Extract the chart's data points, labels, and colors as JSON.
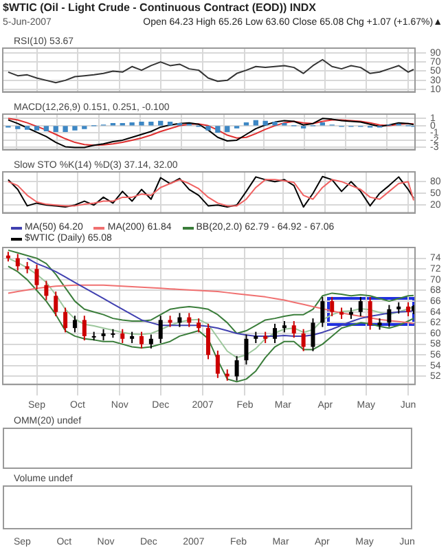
{
  "chart_data": [
    {
      "type": "other",
      "title": "$WTIC (Oil - Light Crude - Continuous Contract (EOD)) INDX",
      "subtitle": "5-Jun-2007",
      "annotations": [
        "Open 64.23  High 65.26  Low 63.60  Close 65.08  Chg +1.07 (+1.67%)▲"
      ]
    },
    {
      "type": "line",
      "title": "RSI(10) 53.67",
      "xlim": [
        "2006-08-07",
        "2007-06-06"
      ],
      "xticks": [
        {
          "value": "2006-09-01",
          "label": null
        },
        {
          "value": "2006-10-01",
          "label": null
        },
        {
          "value": "2006-11-01",
          "label": null
        },
        {
          "value": "2006-12-01",
          "label": null
        },
        {
          "value": "2007-01-01",
          "label": null
        },
        {
          "value": "2007-02-01",
          "label": null
        },
        {
          "value": "2007-03-01",
          "label": null
        },
        {
          "value": "2007-04-01",
          "label": null
        },
        {
          "value": "2007-05-01",
          "label": null
        },
        {
          "value": "2007-06-01",
          "label": null
        }
      ],
      "ylim": [
        5,
        100
      ],
      "yticks": [
        10,
        30,
        50,
        70,
        90
      ],
      "tick_labels": "y",
      "grid": true,
      "x": [
        "2006-08-11",
        "2006-08-18",
        "2006-08-25",
        "2006-09-01",
        "2006-09-08",
        "2006-09-15",
        "2006-09-22",
        "2006-09-29",
        "2006-10-06",
        "2006-10-13",
        "2006-10-20",
        "2006-10-27",
        "2006-11-03",
        "2006-11-10",
        "2006-11-17",
        "2006-11-24",
        "2006-12-01",
        "2006-12-08",
        "2006-12-15",
        "2006-12-22",
        "2006-12-29",
        "2007-01-05",
        "2007-01-12",
        "2007-01-19",
        "2007-01-26",
        "2007-02-02",
        "2007-02-09",
        "2007-02-16",
        "2007-02-23",
        "2007-03-02",
        "2007-03-09",
        "2007-03-16",
        "2007-03-23",
        "2007-03-30",
        "2007-04-06",
        "2007-04-13",
        "2007-04-20",
        "2007-04-27",
        "2007-05-04",
        "2007-05-11",
        "2007-05-18",
        "2007-05-25",
        "2007-06-01",
        "2007-06-05"
      ],
      "series": [
        {
          "color": "#333333",
          "values": [
            48,
            40,
            42,
            35,
            30,
            25,
            30,
            38,
            40,
            42,
            45,
            50,
            48,
            60,
            52,
            62,
            70,
            62,
            65,
            55,
            52,
            35,
            28,
            30,
            45,
            52,
            60,
            58,
            60,
            62,
            58,
            45,
            62,
            75,
            60,
            55,
            62,
            58,
            45,
            48,
            55,
            62,
            48,
            53.67
          ]
        }
      ]
    },
    {
      "type": "line",
      "title": "MACD(12,26,9) 0.151, 0.251, -0.100",
      "xlim": [
        "2006-08-07",
        "2007-06-06"
      ],
      "xticks": [
        {
          "value": "2006-09-01",
          "label": null
        },
        {
          "value": "2006-10-01",
          "label": null
        },
        {
          "value": "2006-11-01",
          "label": null
        },
        {
          "value": "2006-12-01",
          "label": null
        },
        {
          "value": "2007-01-01",
          "label": null
        },
        {
          "value": "2007-02-01",
          "label": null
        },
        {
          "value": "2007-03-01",
          "label": null
        },
        {
          "value": "2007-04-01",
          "label": null
        },
        {
          "value": "2007-05-01",
          "label": null
        },
        {
          "value": "2007-06-01",
          "label": null
        }
      ],
      "ylim": [
        -3.3,
        1.6
      ],
      "yticks": [
        -3,
        -2,
        -1,
        0,
        1
      ],
      "tick_labels": "y",
      "grid": true,
      "x": [
        "2006-08-11",
        "2006-08-18",
        "2006-08-25",
        "2006-09-01",
        "2006-09-08",
        "2006-09-15",
        "2006-09-22",
        "2006-09-29",
        "2006-10-06",
        "2006-10-13",
        "2006-10-20",
        "2006-10-27",
        "2006-11-03",
        "2006-11-10",
        "2006-11-17",
        "2006-11-24",
        "2006-12-01",
        "2006-12-08",
        "2006-12-15",
        "2006-12-22",
        "2006-12-29",
        "2007-01-05",
        "2007-01-12",
        "2007-01-19",
        "2007-01-26",
        "2007-02-02",
        "2007-02-09",
        "2007-02-16",
        "2007-02-23",
        "2007-03-02",
        "2007-03-09",
        "2007-03-16",
        "2007-03-23",
        "2007-03-30",
        "2007-04-06",
        "2007-04-13",
        "2007-04-20",
        "2007-04-27",
        "2007-05-04",
        "2007-05-11",
        "2007-05-18",
        "2007-05-25",
        "2007-06-01",
        "2007-06-05"
      ],
      "series": [
        {
          "type": "bar",
          "color": "#3d87c4",
          "values": [
            -0.2,
            -0.4,
            -0.5,
            -0.6,
            -0.7,
            -0.8,
            -0.8,
            -0.6,
            -0.4,
            0,
            0.1,
            0.3,
            0.3,
            0.4,
            0.5,
            0.5,
            0.6,
            0.5,
            0.3,
            0.2,
            -0.05,
            -0.6,
            -0.9,
            -0.8,
            -0.3,
            0.4,
            0.7,
            0.6,
            0.5,
            0.3,
            0,
            -0.3,
            0,
            0.4,
            0.1,
            -0.1,
            -0.1,
            -0.1,
            -0.2,
            -0.2,
            0.1,
            0.2,
            0,
            -0.1
          ]
        },
        {
          "color": "#000000",
          "values": [
            0.8,
            0.3,
            -0.3,
            -0.9,
            -1.5,
            -2.3,
            -2.9,
            -3.0,
            -3.0,
            -2.7,
            -2.5,
            -2.2,
            -2.0,
            -1.6,
            -1.2,
            -0.8,
            -0.2,
            0.1,
            0.3,
            0.4,
            0.2,
            -0.6,
            -1.6,
            -2.1,
            -2.0,
            -1.2,
            -0.4,
            0.1,
            0.5,
            0.7,
            0.6,
            0.1,
            0.3,
            1.0,
            0.9,
            0.7,
            0.6,
            0.5,
            0.2,
            -0.1,
            0.1,
            0.4,
            0.3,
            0.151
          ]
        },
        {
          "color": "#e03030",
          "values": [
            1.0,
            0.8,
            0.4,
            -0.1,
            -0.6,
            -1.2,
            -1.8,
            -2.3,
            -2.6,
            -2.7,
            -2.65,
            -2.5,
            -2.3,
            -2.0,
            -1.7,
            -1.3,
            -0.8,
            -0.4,
            0.0,
            0.2,
            0.25,
            0.0,
            -0.6,
            -1.3,
            -1.7,
            -1.6,
            -1.1,
            -0.5,
            0.0,
            0.4,
            0.6,
            0.4,
            0.3,
            0.6,
            0.8,
            0.8,
            0.7,
            0.6,
            0.4,
            0.1,
            0.0,
            0.2,
            0.3,
            0.251
          ]
        }
      ]
    },
    {
      "type": "line",
      "title": "Slow STO %K(14) %D(3) 37.14, 32.00",
      "xlim": [
        "2006-08-07",
        "2007-06-06"
      ],
      "xticks": [
        {
          "value": "2006-09-01",
          "label": null
        },
        {
          "value": "2006-10-01",
          "label": null
        },
        {
          "value": "2006-11-01",
          "label": null
        },
        {
          "value": "2006-12-01",
          "label": null
        },
        {
          "value": "2007-01-01",
          "label": null
        },
        {
          "value": "2007-02-01",
          "label": null
        },
        {
          "value": "2007-03-01",
          "label": null
        },
        {
          "value": "2007-04-01",
          "label": null
        },
        {
          "value": "2007-05-01",
          "label": null
        },
        {
          "value": "2007-06-01",
          "label": null
        }
      ],
      "ylim": [
        0,
        105
      ],
      "yticks": [
        20,
        50,
        80
      ],
      "tick_labels": "y",
      "grid": true,
      "x": [
        "2006-08-11",
        "2006-08-18",
        "2006-08-25",
        "2006-09-01",
        "2006-09-08",
        "2006-09-15",
        "2006-09-22",
        "2006-09-29",
        "2006-10-06",
        "2006-10-13",
        "2006-10-20",
        "2006-10-27",
        "2006-11-03",
        "2006-11-10",
        "2006-11-17",
        "2006-11-24",
        "2006-12-01",
        "2006-12-08",
        "2006-12-15",
        "2006-12-22",
        "2006-12-29",
        "2007-01-05",
        "2007-01-12",
        "2007-01-19",
        "2007-01-26",
        "2007-02-02",
        "2007-02-09",
        "2007-02-16",
        "2007-02-23",
        "2007-03-02",
        "2007-03-09",
        "2007-03-16",
        "2007-03-23",
        "2007-03-30",
        "2007-04-06",
        "2007-04-13",
        "2007-04-20",
        "2007-04-27",
        "2007-05-04",
        "2007-05-11",
        "2007-05-18",
        "2007-05-25",
        "2007-06-01",
        "2007-06-05"
      ],
      "series": [
        {
          "color": "#f06060",
          "values": [
            80,
            70,
            45,
            28,
            22,
            20,
            18,
            18,
            22,
            25,
            30,
            30,
            40,
            40,
            48,
            45,
            65,
            75,
            85,
            75,
            62,
            40,
            25,
            18,
            18,
            35,
            65,
            85,
            85,
            82,
            78,
            45,
            35,
            65,
            85,
            80,
            70,
            60,
            40,
            35,
            55,
            75,
            80,
            32
          ]
        },
        {
          "color": "#000000",
          "values": [
            85,
            60,
            18,
            25,
            20,
            18,
            15,
            20,
            30,
            20,
            40,
            25,
            55,
            30,
            60,
            35,
            90,
            75,
            88,
            60,
            45,
            18,
            20,
            15,
            20,
            55,
            92,
            85,
            80,
            85,
            70,
            15,
            50,
            93,
            85,
            55,
            80,
            55,
            18,
            50,
            70,
            92,
            60,
            37.14
          ]
        }
      ]
    },
    {
      "type": "candlestick",
      "xlim": [
        "2006-08-07",
        "2007-06-06"
      ],
      "xticks": [
        {
          "value": "2006-09-01",
          "label": "Sep"
        },
        {
          "value": "2006-10-01",
          "label": "Oct"
        },
        {
          "value": "2006-11-01",
          "label": "Nov"
        },
        {
          "value": "2006-12-01",
          "label": "Dec"
        },
        {
          "value": "2007-01-01",
          "label": "2007"
        },
        {
          "value": "2007-02-01",
          "label": "Feb"
        },
        {
          "value": "2007-03-01",
          "label": "Mar"
        },
        {
          "value": "2007-04-01",
          "label": "Apr"
        },
        {
          "value": "2007-05-01",
          "label": "May"
        },
        {
          "value": "2007-06-01",
          "label": "Jun"
        }
      ],
      "ylim": [
        50.5,
        76
      ],
      "yticks": [
        52,
        54,
        56,
        58,
        60,
        62,
        64,
        66,
        68,
        70,
        72,
        74
      ],
      "grid": true,
      "legend": "top left",
      "x": [
        "2006-08-11",
        "2006-08-18",
        "2006-08-25",
        "2006-09-01",
        "2006-09-08",
        "2006-09-15",
        "2006-09-22",
        "2006-09-29",
        "2006-10-06",
        "2006-10-13",
        "2006-10-20",
        "2006-10-27",
        "2006-11-03",
        "2006-11-10",
        "2006-11-17",
        "2006-11-24",
        "2006-12-01",
        "2006-12-08",
        "2006-12-15",
        "2006-12-22",
        "2006-12-29",
        "2007-01-05",
        "2007-01-12",
        "2007-01-19",
        "2007-01-26",
        "2007-02-02",
        "2007-02-09",
        "2007-02-16",
        "2007-02-23",
        "2007-03-02",
        "2007-03-09",
        "2007-03-16",
        "2007-03-23",
        "2007-03-30",
        "2007-04-06",
        "2007-04-13",
        "2007-04-20",
        "2007-04-27",
        "2007-05-04",
        "2007-05-11",
        "2007-05-18",
        "2007-05-25",
        "2007-06-01",
        "2007-06-05"
      ],
      "series": [
        {
          "type": "line",
          "name": "MA(50) 64.20",
          "color": "#4040b0",
          "values": [
            null,
            null,
            74,
            73,
            72.3,
            71.5,
            70.5,
            69.5,
            68.5,
            67.5,
            66.5,
            65.5,
            64.5,
            63.5,
            62.5,
            62,
            61.5,
            61.5,
            61.5,
            61.5,
            61.5,
            61.3,
            61,
            60.5,
            60,
            59.7,
            59.5,
            59.5,
            59.5,
            59.6,
            59.5,
            59.5,
            59.7,
            60.2,
            60.8,
            61.5,
            62.2,
            62.8,
            63.2,
            63.5,
            63.8,
            64,
            64.1,
            64.2
          ]
        },
        {
          "type": "line",
          "name": "MA(200) 61.84",
          "color": "#f07070",
          "values": [
            67.5,
            67.8,
            68.1,
            68.4,
            68.6,
            68.8,
            68.9,
            69,
            69,
            69,
            69,
            68.9,
            68.8,
            68.7,
            68.6,
            68.5,
            68.4,
            68.3,
            68.2,
            68.1,
            68,
            67.9,
            67.8,
            67.6,
            67.4,
            67.2,
            67,
            66.8,
            66.5,
            66.2,
            65.8,
            65.4,
            65,
            64.6,
            64.2,
            63.8,
            63.5,
            63.2,
            62.9,
            62.6,
            62.4,
            62.2,
            62,
            61.84
          ]
        },
        {
          "type": "line",
          "name": "BB(20,2.0) 62.79 - 64.92 - 67.06",
          "color": "#3a7d3a",
          "values": [
            75.5,
            75,
            74.5,
            74,
            73,
            71,
            68.5,
            66,
            64.5,
            64,
            63.5,
            62.8,
            62.5,
            62.3,
            62.3,
            62.5,
            63.5,
            64.5,
            64.8,
            65,
            64.8,
            64.5,
            63.5,
            62,
            60,
            60.5,
            61.5,
            62.5,
            62.8,
            63.2,
            63.5,
            63.5,
            64.5,
            67,
            67.5,
            67.3,
            67,
            67.2,
            67,
            66.5,
            66,
            66.5,
            67,
            67.06
          ]
        },
        {
          "type": "line",
          "color": "#9cc79c",
          "values": [
            74,
            73.2,
            72.2,
            71,
            69.5,
            67.2,
            64.5,
            62.7,
            61.7,
            61.4,
            61,
            60.6,
            60.2,
            59.9,
            59.8,
            60,
            60.7,
            61.5,
            62.1,
            62.5,
            62.6,
            61.7,
            59.2,
            56.7,
            55.5,
            56,
            57.2,
            59,
            60.1,
            60.8,
            61,
            60.2,
            60.7,
            62.5,
            63.5,
            64.1,
            64.2,
            64.6,
            64.4,
            63.9,
            63.5,
            64,
            64.6,
            64.92
          ]
        },
        {
          "type": "line",
          "color": "#3a7d3a",
          "values": [
            72.5,
            71.5,
            70,
            68,
            66,
            63.5,
            60.5,
            59.5,
            59,
            58.8,
            58.5,
            58.5,
            58,
            57.5,
            57.3,
            57.5,
            58,
            58.5,
            59.5,
            60,
            60.5,
            59,
            55,
            51.5,
            51,
            51.5,
            53,
            55.5,
            57.5,
            58.5,
            58.5,
            57,
            57,
            58,
            59.5,
            61,
            61.5,
            62,
            61.8,
            61.3,
            61,
            61.5,
            62.3,
            62.79
          ]
        },
        {
          "type": "candlestick",
          "name": "$WTIC (Daily) 65.08",
          "color": "#000000",
          "colors": [
            "#cc0000",
            "#cc0000",
            "#cc0000",
            "#cc0000",
            "#cc0000",
            "#cc0000",
            "#cc0000",
            "#000000",
            "#cc0000",
            "#000000",
            "#000000",
            "#000000",
            "#cc0000",
            "#000000",
            "#cc0000",
            "#000000",
            "#000000",
            "#cc0000",
            "#000000",
            "#cc0000",
            "#cc0000",
            "#cc0000",
            "#cc0000",
            "#cc0000",
            "#000000",
            "#000000",
            "#000000",
            "#cc0000",
            "#000000",
            "#000000",
            "#cc0000",
            "#cc0000",
            "#000000",
            "#000000",
            "#cc0000",
            "#cc0000",
            "#000000",
            "#000000",
            "#cc0000",
            "#000000",
            "#000000",
            "#000000",
            "#cc0000",
            "#000000"
          ],
          "ohlc": [
            [
              74.5,
              75.2,
              73.4,
              74
            ],
            [
              74,
              74.8,
              71.7,
              72.5
            ],
            [
              72.5,
              73.3,
              71.2,
              72
            ],
            [
              72,
              72.8,
              68.2,
              69
            ],
            [
              69,
              69.8,
              66.2,
              67
            ],
            [
              67,
              67.8,
              63.2,
              64
            ],
            [
              64,
              64.8,
              60.2,
              61
            ],
            [
              61,
              63.3,
              60.2,
              62.5
            ],
            [
              62.5,
              63.3,
              58.7,
              59.5
            ],
            [
              59.5,
              60.3,
              58.7,
              59.5
            ],
            [
              59.5,
              60.8,
              58.7,
              60
            ],
            [
              60,
              60.8,
              59.2,
              60
            ],
            [
              60,
              60.8,
              58.2,
              59
            ],
            [
              59,
              60.3,
              58.2,
              59.5
            ],
            [
              59.5,
              60.3,
              57.2,
              58
            ],
            [
              58,
              59.8,
              57.2,
              59
            ],
            [
              59,
              63.3,
              58.2,
              62.5
            ],
            [
              62.5,
              63.3,
              61.2,
              62
            ],
            [
              62,
              63.8,
              61.2,
              63
            ],
            [
              63,
              63.8,
              61.2,
              62
            ],
            [
              62,
              62.8,
              60.2,
              61
            ],
            [
              61,
              61.8,
              55.2,
              56
            ],
            [
              56,
              56.8,
              51.7,
              52.5
            ],
            [
              52.5,
              53.3,
              51.2,
              52
            ],
            [
              52,
              55.8,
              51.2,
              55
            ],
            [
              55,
              59.8,
              54.2,
              59
            ],
            [
              59,
              60.3,
              58.2,
              59.5
            ],
            [
              59.5,
              60.3,
              58.2,
              59
            ],
            [
              59,
              61.8,
              58.2,
              61
            ],
            [
              61,
              62.3,
              60.2,
              61.5
            ],
            [
              61.5,
              62.3,
              59.2,
              60
            ],
            [
              60,
              60.8,
              56.7,
              57.5
            ],
            [
              57.5,
              62.8,
              56.7,
              62
            ],
            [
              62,
              66.8,
              61.2,
              66
            ],
            [
              66,
              66.8,
              63.2,
              64
            ],
            [
              64,
              64.8,
              62.7,
              63.5
            ],
            [
              63.5,
              64.8,
              62.7,
              64
            ],
            [
              64,
              66.8,
              63.2,
              66
            ],
            [
              66,
              66.8,
              60.7,
              61.5
            ],
            [
              61.5,
              62.8,
              60.7,
              62
            ],
            [
              62,
              65.3,
              61.2,
              64.5
            ],
            [
              64.5,
              65.8,
              63.7,
              65
            ],
            [
              65,
              65.8,
              63.2,
              64
            ],
            [
              64.23,
              65.26,
              63.6,
              65.08
            ]
          ]
        }
      ]
    },
    {
      "type": "other",
      "title": "OMM(20) undef"
    },
    {
      "type": "other",
      "title": "Volume undef",
      "annotations": [
        "Sep",
        "Oct",
        "Nov",
        "Dec",
        "2007",
        "Feb",
        "Mar",
        "Apr",
        "May",
        "Jun"
      ]
    }
  ]
}
